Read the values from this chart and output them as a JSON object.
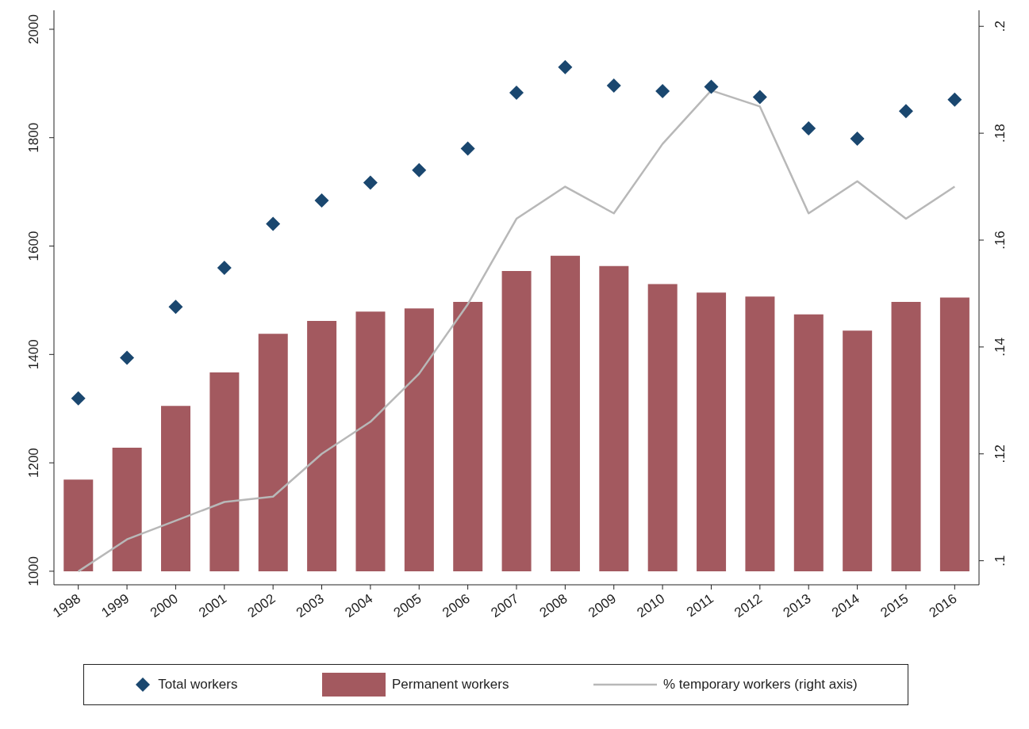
{
  "chart_data": {
    "type": "bar",
    "categories": [
      "1998",
      "1999",
      "2000",
      "2001",
      "2002",
      "2003",
      "2004",
      "2005",
      "2006",
      "2007",
      "2008",
      "2009",
      "2010",
      "2011",
      "2012",
      "2013",
      "2014",
      "2015",
      "2016"
    ],
    "series": [
      {
        "name": "Total workers",
        "type": "scatter",
        "marker": "diamond",
        "color": "#1a476f",
        "values": [
          1319,
          1394,
          1488,
          1560,
          1641,
          1684,
          1717,
          1740,
          1780,
          1883,
          1930,
          1896,
          1886,
          1894,
          1875,
          1817,
          1798,
          1849,
          1870
        ]
      },
      {
        "name": "Permanent workers",
        "color": "#a3595f",
        "base": [
          1000,
          1000,
          1000,
          1000,
          1000,
          1000,
          1000,
          1000,
          1000,
          1000,
          1000,
          1000,
          1000,
          1000,
          1000,
          1000,
          1000,
          1000,
          1000
        ],
        "values": [
          169,
          228,
          305,
          367,
          438,
          462,
          479,
          485,
          497,
          554,
          582,
          563,
          530,
          514,
          507,
          474,
          444,
          497,
          505
        ]
      },
      {
        "name": "% temporary workers (right axis)",
        "type": "line",
        "axis": "y2",
        "color": "#b8b8b8",
        "values": [
          0.098,
          0.104,
          0.1075,
          0.111,
          0.112,
          0.12,
          0.126,
          0.135,
          0.148,
          0.164,
          0.17,
          0.165,
          0.178,
          0.188,
          0.185,
          0.165,
          0.171,
          0.164,
          0.17
        ]
      }
    ],
    "ylim": [
      975,
      2035
    ],
    "yticks": [
      1000,
      1200,
      1400,
      1600,
      1800,
      2000
    ],
    "y2lim": [
      0.0955,
      0.203
    ],
    "y2ticks": [
      {
        "value": 0.1,
        "label": ".1"
      },
      {
        "value": 0.12,
        "label": ".12"
      },
      {
        "value": 0.14,
        "label": ".14"
      },
      {
        "value": 0.16,
        "label": ".16"
      },
      {
        "value": 0.18,
        "label": ".18"
      },
      {
        "value": 0.2,
        "label": ".2"
      }
    ],
    "grid": false,
    "legend": "bottom"
  }
}
